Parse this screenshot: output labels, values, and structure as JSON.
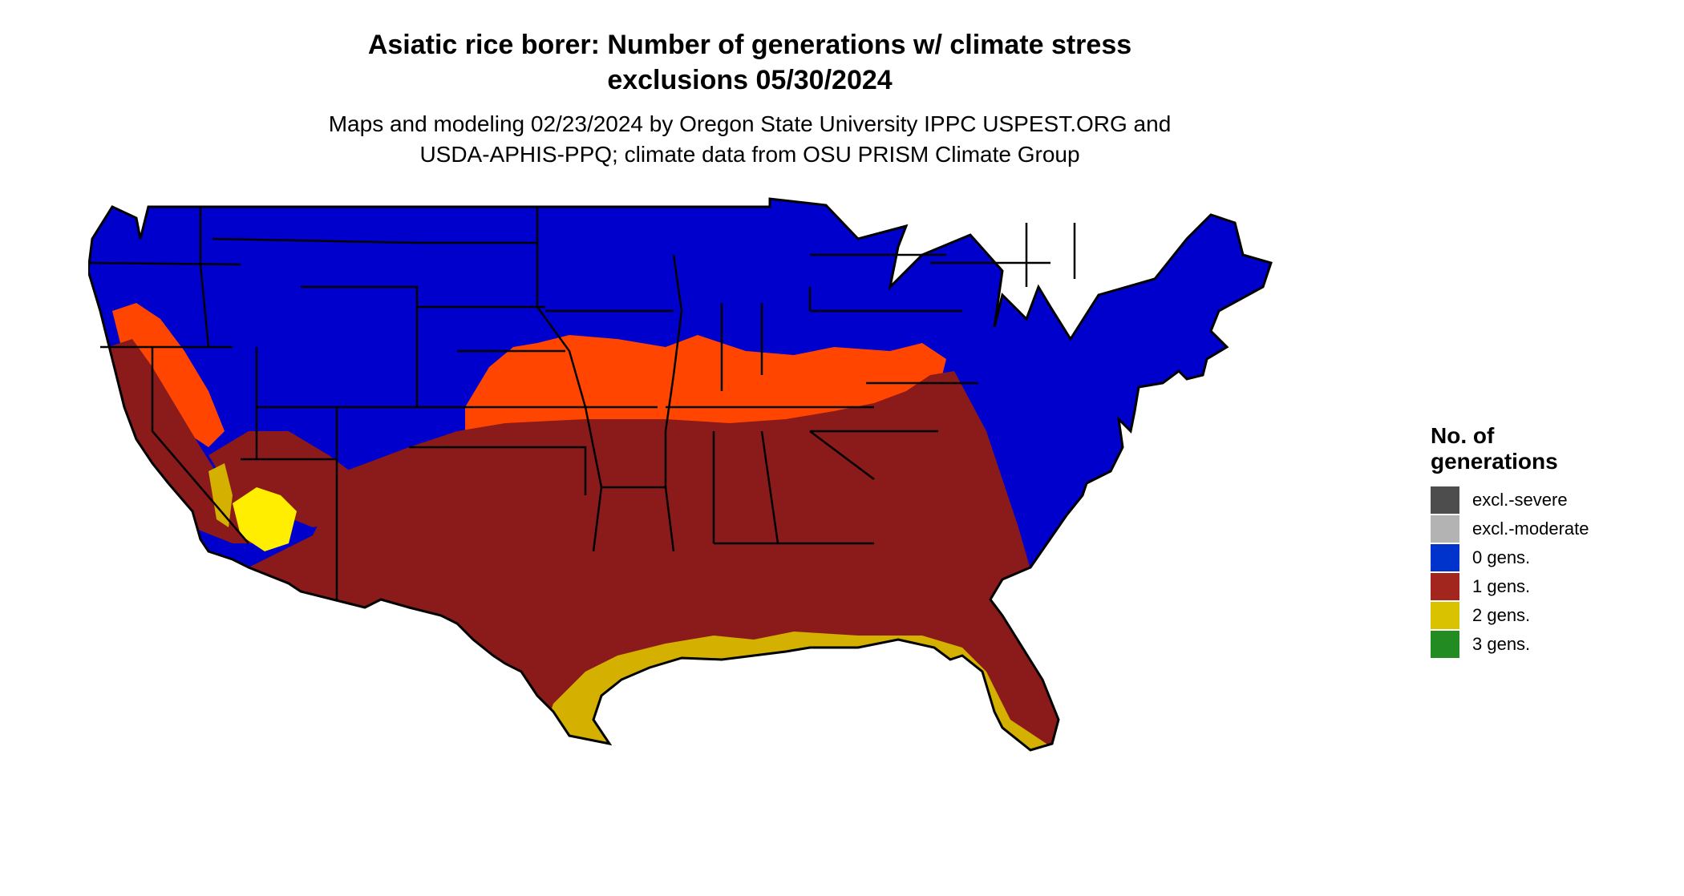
{
  "header": {
    "title_line1": "Asiatic rice borer: Number of generations w/ climate stress",
    "title_line2": "exclusions 05/30/2024",
    "subtitle_line1": "Maps and modeling 02/23/2024 by Oregon State University IPPC USPEST.ORG and",
    "subtitle_line2": "USDA-APHIS-PPQ; climate data from OSU PRISM Climate Group"
  },
  "legend": {
    "title_line1": "No. of",
    "title_line2": "generations",
    "items": [
      {
        "label": "excl.-severe",
        "color": "#4d4d4d"
      },
      {
        "label": "excl.-moderate",
        "color": "#b3b3b3"
      },
      {
        "label": "0 gens.",
        "color": "#0033cc"
      },
      {
        "label": "1 gens.",
        "color": "#a3261e"
      },
      {
        "label": "2 gens.",
        "color": "#d9c200"
      },
      {
        "label": "3 gens.",
        "color": "#228b22"
      }
    ]
  },
  "map": {
    "region": "conterminous United States",
    "colors": {
      "zero_generations": "#0000cc",
      "partial_generation": "#ff4500",
      "one_generation": "#8b1a1a",
      "two_generations": "#d4b000",
      "three_generations": "#228b22",
      "state_borders": "#000000"
    }
  }
}
